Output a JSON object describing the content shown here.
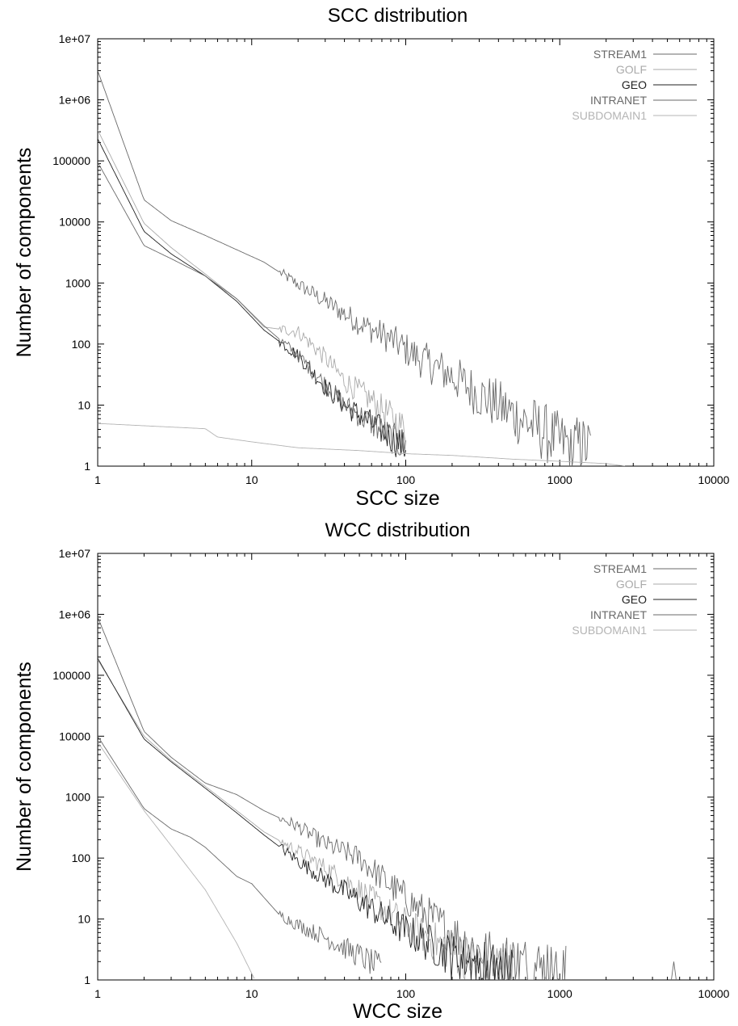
{
  "chart_data": [
    {
      "type": "line",
      "title": "SCC distribution",
      "xlabel": "SCC size",
      "ylabel": "Number of components",
      "xscale": "log",
      "yscale": "log",
      "xlim": [
        1,
        10000
      ],
      "ylim": [
        1,
        10000000
      ],
      "xticks": [
        "1",
        "10",
        "100",
        "1000",
        "10000"
      ],
      "yticks": [
        "1",
        "10",
        "100",
        "1000",
        "10000",
        "100000",
        "1e+06",
        "1e+07"
      ],
      "grid": false,
      "legend_position": "top-right",
      "series": [
        {
          "name": "STREAM1",
          "color": "#6a6a6a",
          "noisy": true,
          "x": [
            1,
            2,
            3,
            5,
            8,
            12,
            20,
            30,
            50,
            80,
            120,
            200,
            300,
            500,
            800,
            1000,
            1600
          ],
          "y": [
            3000000,
            23000,
            10500,
            6000,
            3500,
            2200,
            950,
            500,
            220,
            120,
            60,
            30,
            15,
            7,
            3.5,
            2.5,
            2
          ]
        },
        {
          "name": "GOLF",
          "color": "#aaaaaa",
          "noisy": true,
          "x": [
            1,
            2,
            3,
            5,
            8,
            12,
            20,
            30,
            40,
            60,
            100
          ],
          "y": [
            320000,
            9500,
            3800,
            1400,
            550,
            190,
            160,
            60,
            25,
            12,
            4
          ]
        },
        {
          "name": "GEO",
          "color": "#222222",
          "noisy": true,
          "x": [
            1,
            2,
            3,
            5,
            8,
            12,
            20,
            30,
            40,
            60,
            100
          ],
          "y": [
            230000,
            7000,
            3000,
            1300,
            500,
            170,
            65,
            20,
            10,
            5,
            2
          ]
        },
        {
          "name": "INTRANET",
          "color": "#6a6a6a",
          "noisy": true,
          "x": [
            1,
            2,
            3,
            5,
            8,
            12,
            20,
            30,
            40,
            60,
            100
          ],
          "y": [
            95000,
            4100,
            2500,
            1300,
            550,
            200,
            65,
            22,
            10,
            5,
            2
          ]
        },
        {
          "name": "SUBDOMAIN1",
          "color": "#b4b4b4",
          "noisy": false,
          "x": [
            1,
            5,
            6,
            10,
            20,
            50,
            100,
            200,
            500,
            1000,
            2000,
            2700
          ],
          "y": [
            5,
            4.1,
            3,
            2.5,
            2,
            1.8,
            1.6,
            1.5,
            1.3,
            1.2,
            1.1,
            1
          ]
        }
      ]
    },
    {
      "type": "line",
      "title": "WCC distribution",
      "xlabel": "WCC size",
      "ylabel": "Number of components",
      "xscale": "log",
      "yscale": "log",
      "xlim": [
        1,
        10000
      ],
      "ylim": [
        1,
        10000000
      ],
      "xticks": [
        "1",
        "10",
        "100",
        "1000",
        "10000"
      ],
      "yticks": [
        "1",
        "10",
        "100",
        "1000",
        "10000",
        "100000",
        "1e+06",
        "1e+07"
      ],
      "grid": false,
      "legend_position": "top-right",
      "series": [
        {
          "name": "STREAM1",
          "color": "#6a6a6a",
          "noisy": true,
          "x": [
            1,
            2,
            3,
            5,
            8,
            12,
            20,
            30,
            50,
            80,
            120,
            200,
            300,
            500,
            800,
            1100
          ],
          "y": [
            900000,
            12000,
            4500,
            1700,
            1100,
            600,
            330,
            170,
            100,
            35,
            15,
            6,
            3,
            2,
            1.5,
            1.2
          ]
        },
        {
          "name": "GOLF",
          "color": "#aaaaaa",
          "noisy": true,
          "x": [
            1,
            2,
            3,
            5,
            8,
            12,
            20,
            30,
            50,
            80,
            120,
            200,
            300,
            500
          ],
          "y": [
            180000,
            10000,
            4000,
            1500,
            600,
            270,
            130,
            70,
            30,
            12,
            6,
            3,
            2,
            1.5
          ]
        },
        {
          "name": "GEO",
          "color": "#222222",
          "noisy": true,
          "x": [
            1,
            2,
            3,
            5,
            8,
            12,
            20,
            30,
            50,
            80,
            120,
            200,
            300,
            500
          ],
          "y": [
            190000,
            9000,
            3800,
            1400,
            550,
            240,
            90,
            45,
            20,
            9,
            5,
            2.5,
            1.8,
            1.3
          ]
        },
        {
          "name": "INTRANET",
          "color": "#6a6a6a",
          "noisy": true,
          "x": [
            1,
            2,
            3,
            4,
            5,
            8,
            10,
            15,
            20,
            30,
            50,
            70
          ],
          "y": [
            10000,
            650,
            300,
            220,
            150,
            50,
            38,
            12,
            8,
            5,
            2.5,
            1.5
          ]
        },
        {
          "name": "SUBDOMAIN1",
          "color": "#b4b4b4",
          "noisy": false,
          "x": [
            1,
            2,
            3,
            5,
            8,
            10.5
          ],
          "y": [
            8000,
            600,
            160,
            30,
            4,
            1
          ]
        }
      ],
      "spikes": [
        {
          "x": 5500,
          "y": 2
        }
      ]
    }
  ]
}
